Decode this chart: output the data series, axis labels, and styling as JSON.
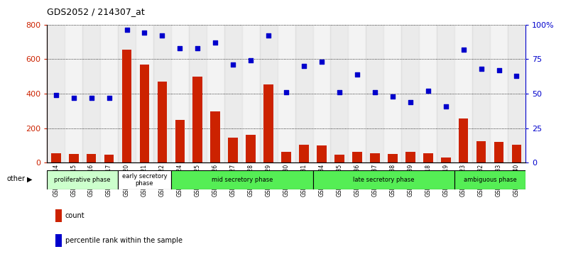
{
  "title": "GDS2052 / 214307_at",
  "categories": [
    "GSM109814",
    "GSM109815",
    "GSM109816",
    "GSM109817",
    "GSM109820",
    "GSM109821",
    "GSM109822",
    "GSM109824",
    "GSM109825",
    "GSM109826",
    "GSM109827",
    "GSM109828",
    "GSM109829",
    "GSM109830",
    "GSM109831",
    "GSM109834",
    "GSM109835",
    "GSM109836",
    "GSM109837",
    "GSM109838",
    "GSM109839",
    "GSM109818",
    "GSM109819",
    "GSM109823",
    "GSM109832",
    "GSM109833",
    "GSM109840"
  ],
  "bar_values": [
    55,
    50,
    52,
    45,
    655,
    570,
    470,
    248,
    500,
    298,
    145,
    162,
    455,
    65,
    105,
    100,
    45,
    65,
    55,
    50,
    65,
    55,
    30,
    258,
    125,
    120,
    105
  ],
  "scatter_values": [
    49,
    47,
    47,
    47,
    96,
    94,
    92,
    83,
    83,
    87,
    71,
    74,
    92,
    51,
    70,
    73,
    51,
    64,
    51,
    48,
    44,
    52,
    41,
    82,
    68,
    67,
    63
  ],
  "phases": [
    {
      "label": "proliferative phase",
      "start": 0,
      "end": 4,
      "color": "#ccffcc"
    },
    {
      "label": "early secretory\nphase",
      "start": 4,
      "end": 7,
      "color": "#ffffff"
    },
    {
      "label": "mid secretory phase",
      "start": 7,
      "end": 15,
      "color": "#55ee55"
    },
    {
      "label": "late secretory phase",
      "start": 15,
      "end": 23,
      "color": "#55ee55"
    },
    {
      "label": "ambiguous phase",
      "start": 23,
      "end": 27,
      "color": "#55ee55"
    }
  ],
  "bar_color": "#cc2200",
  "scatter_color": "#0000cc",
  "ylim_left": [
    0,
    800
  ],
  "ylim_right": [
    0,
    100
  ],
  "yticks_left": [
    0,
    200,
    400,
    600,
    800
  ],
  "yticks_right": [
    0,
    25,
    50,
    75,
    100
  ],
  "ytick_labels_right": [
    "0",
    "25",
    "50",
    "75",
    "100%"
  ],
  "bg_color": "#ffffff"
}
